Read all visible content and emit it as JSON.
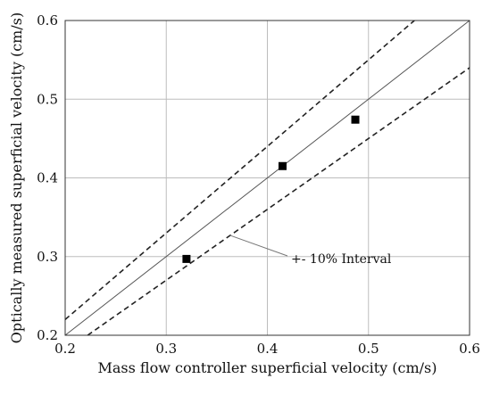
{
  "chart_data": {
    "type": "scatter",
    "xlabel": "Mass flow controller superficial velocity (cm/s)",
    "ylabel": "Optically measured superficial velocity (cm/s)",
    "xlim": [
      0.2,
      0.6
    ],
    "ylim": [
      0.2,
      0.6
    ],
    "xticks": [
      "0.2",
      "0.3",
      "0.4",
      "0.5",
      "0.6"
    ],
    "yticks": [
      "0.2",
      "0.3",
      "0.4",
      "0.5",
      "0.6"
    ],
    "grid": true,
    "points": [
      {
        "x": 0.32,
        "y": 0.297
      },
      {
        "x": 0.415,
        "y": 0.415
      },
      {
        "x": 0.487,
        "y": 0.474
      }
    ],
    "reference_line": {
      "slope": 1.0,
      "style": "solid"
    },
    "interval_lines": [
      {
        "slope": 1.1,
        "style": "dashed"
      },
      {
        "slope": 0.9,
        "style": "dashed"
      }
    ],
    "annotation": {
      "text": "+- 10% Interval",
      "points_to": {
        "x": 0.363,
        "y": 0.327
      }
    }
  }
}
